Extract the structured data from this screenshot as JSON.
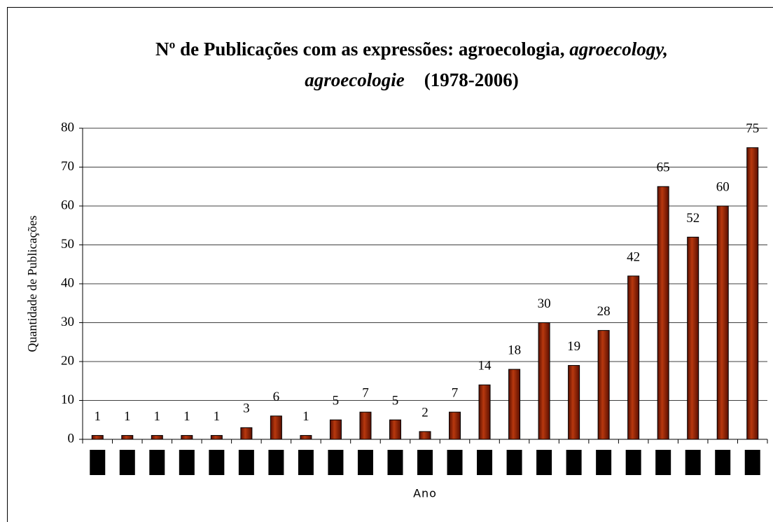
{
  "chart_data": {
    "type": "bar",
    "title": [
      "Nº de Publicações com as expressões: agroecologia, ",
      "agroecology,",
      "agroecologie",
      "(1978-2006)"
    ],
    "y_label": "Quantidade de Publicações",
    "x_label": "Ano",
    "categories": [
      null,
      null,
      null,
      null,
      null,
      null,
      null,
      null,
      null,
      null,
      null,
      null,
      null,
      null,
      null,
      null,
      null,
      null,
      null,
      null,
      null,
      null,
      null
    ],
    "values": [
      1,
      1,
      1,
      1,
      1,
      3,
      6,
      1,
      5,
      7,
      5,
      2,
      7,
      14,
      18,
      30,
      19,
      28,
      42,
      65,
      52,
      60,
      75
    ],
    "color": "#8b1a00",
    "ylim": [
      0,
      80
    ],
    "yticks": [
      0,
      10,
      20,
      30,
      40,
      50,
      60,
      70,
      80
    ],
    "grid": true
  }
}
